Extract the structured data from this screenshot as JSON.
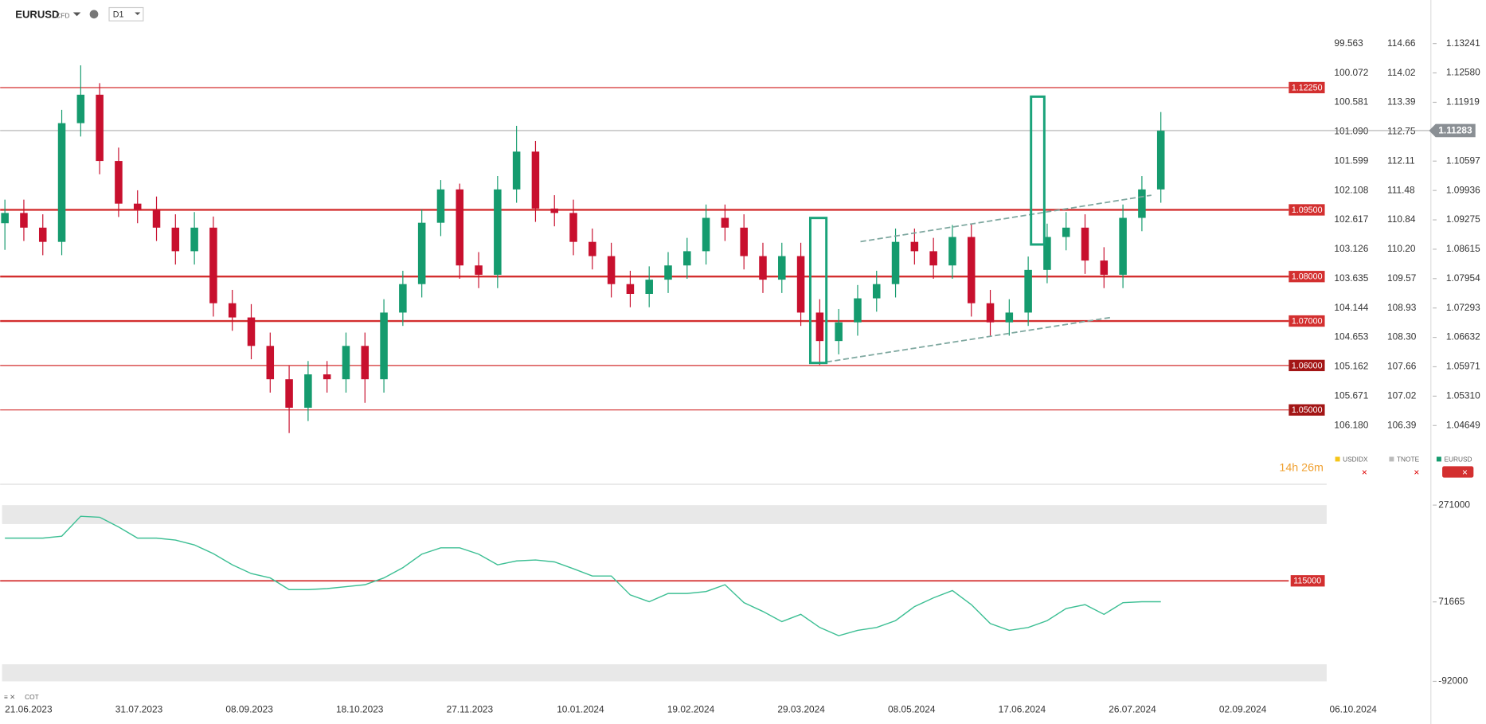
{
  "header": {
    "symbol": "EURUSD",
    "kind": "CFD",
    "interval": "D1"
  },
  "legend": [
    "USDIDX",
    "TNOTE",
    "EURUSD"
  ],
  "timer": "14h 26m",
  "axes": {
    "usdidx": [
      "99.563",
      "100.072",
      "100.581",
      "101.090",
      "101.599",
      "102.108",
      "102.617",
      "103.126",
      "103.635",
      "104.144",
      "104.653",
      "105.162",
      "105.671",
      "106.180"
    ],
    "tnote": [
      "114.66",
      "114.02",
      "113.39",
      "112.75",
      "112.11",
      "111.48",
      "110.84",
      "110.20",
      "109.57",
      "108.93",
      "108.30",
      "107.66",
      "107.02",
      "106.39"
    ]
  },
  "chart_data": [
    {
      "type": "candlestick",
      "name": "EURUSD",
      "categories": [
        null,
        null,
        null,
        null,
        null,
        null,
        null,
        null,
        null,
        null,
        null,
        null,
        null,
        null,
        null,
        null,
        null,
        null,
        null,
        null,
        null,
        null,
        null,
        null,
        null,
        null,
        null,
        null,
        null,
        null,
        null,
        null,
        null,
        null,
        null,
        null,
        null,
        null,
        null,
        null,
        null,
        null,
        null,
        null,
        null,
        null,
        null,
        null,
        null,
        null,
        null,
        null,
        null,
        null,
        null,
        null,
        null,
        null,
        null,
        null,
        null,
        null
      ],
      "open": [
        1.092,
        1.0943,
        1.091,
        1.0878,
        1.1145,
        1.1209,
        1.106,
        1.0964,
        1.095,
        1.091,
        1.0857,
        1.091,
        1.074,
        1.0708,
        1.0644,
        1.0569,
        1.0505,
        1.058,
        1.0569,
        1.0644,
        1.0569,
        1.0719,
        1.0783,
        1.0921,
        1.0996,
        1.0825,
        1.0804,
        1.0996,
        1.1081,
        1.0953,
        1.0943,
        1.0878,
        1.0846,
        1.0783,
        1.0761,
        1.0793,
        1.0825,
        1.0857,
        1.0932,
        1.091,
        1.0846,
        1.0793,
        1.0846,
        1.0719,
        1.0655,
        1.0697,
        1.0751,
        1.0783,
        1.0878,
        1.0857,
        1.0825,
        1.0889,
        1.074,
        1.0697,
        1.0719,
        1.0815,
        1.0889,
        1.091,
        1.0836,
        1.0804,
        1.0932,
        1.0996
      ],
      "high": [
        1.0973,
        1.0973,
        1.094,
        1.1175,
        1.1275,
        1.1235,
        1.109,
        1.0994,
        1.098,
        1.094,
        1.0945,
        1.0935,
        1.077,
        1.0738,
        1.0674,
        1.0599,
        1.061,
        1.061,
        1.0674,
        1.0674,
        1.0749,
        1.0813,
        1.0951,
        1.1017,
        1.1009,
        1.0855,
        1.1026,
        1.1139,
        1.1105,
        1.0983,
        1.0973,
        1.0908,
        1.0876,
        1.0813,
        1.0823,
        1.0855,
        1.0887,
        1.0962,
        1.0962,
        1.094,
        1.0876,
        1.0876,
        1.0876,
        1.0749,
        1.0727,
        1.0781,
        1.0813,
        1.0908,
        1.0908,
        1.0887,
        1.0916,
        1.0919,
        1.077,
        1.0749,
        1.0845,
        1.0919,
        1.0945,
        1.094,
        1.0866,
        1.0962,
        1.1026,
        1.117
      ],
      "low": [
        1.086,
        1.088,
        1.0848,
        1.0848,
        1.1115,
        1.103,
        1.0934,
        1.092,
        1.088,
        1.0827,
        1.0827,
        1.071,
        1.0678,
        1.0614,
        1.0539,
        1.0448,
        1.0475,
        1.0539,
        1.0539,
        1.0516,
        1.0539,
        1.0689,
        1.0753,
        1.0891,
        1.0795,
        1.0774,
        1.0774,
        1.0966,
        1.0923,
        1.0913,
        1.0848,
        1.0816,
        1.0753,
        1.0731,
        1.0731,
        1.0763,
        1.0795,
        1.0827,
        1.088,
        1.0816,
        1.0763,
        1.0763,
        1.0689,
        1.0601,
        1.0625,
        1.0667,
        1.0721,
        1.0753,
        1.0827,
        1.0795,
        1.0795,
        1.071,
        1.0667,
        1.0667,
        1.0689,
        1.0785,
        1.0859,
        1.0806,
        1.0774,
        1.0774,
        1.0902,
        1.0966
      ],
      "close": [
        1.0943,
        1.091,
        1.0878,
        1.1145,
        1.1209,
        1.106,
        1.0964,
        1.095,
        1.091,
        1.0857,
        1.091,
        1.074,
        1.0708,
        1.0644,
        1.0569,
        1.0505,
        1.058,
        1.0569,
        1.0644,
        1.0569,
        1.0719,
        1.0783,
        1.0921,
        1.0996,
        1.0825,
        1.0804,
        1.0996,
        1.1081,
        1.0953,
        1.0943,
        1.0878,
        1.0846,
        1.0783,
        1.0761,
        1.0793,
        1.0825,
        1.0857,
        1.0932,
        1.091,
        1.0846,
        1.0793,
        1.0846,
        1.0719,
        1.0655,
        1.0697,
        1.0751,
        1.0783,
        1.0878,
        1.0857,
        1.0825,
        1.0889,
        1.074,
        1.0697,
        1.0719,
        1.0815,
        1.0889,
        1.091,
        1.0836,
        1.0804,
        1.0932,
        1.0996,
        1.1128
      ],
      "up_color": "#159b6e",
      "down_color": "#c8102e",
      "ylim": [
        1.0335,
        1.1422
      ],
      "yticks": [
        1.13241,
        {
          "value": 1.1258,
          "label": "1.12580"
        },
        1.11919,
        1.10597,
        1.09936,
        1.09275,
        1.08615,
        1.07954,
        1.07293,
        1.06632,
        1.05971,
        {
          "value": 1.0531,
          "label": "1.05310"
        },
        1.04649
      ],
      "levels": [
        {
          "value": 1.1225,
          "label": "1.12250"
        },
        {
          "value": 1.095,
          "label": "1.09500"
        },
        {
          "value": 1.08,
          "label": "1.08000"
        },
        {
          "value": 1.07,
          "label": "1.07000"
        },
        {
          "value": 1.06,
          "label": "1.06000"
        },
        {
          "value": 1.05,
          "label": "1.05000"
        }
      ],
      "level_color": "#d32f2f",
      "last_price": 1.11283,
      "xtick_labels": [
        "21.06.2023",
        "31.07.2023",
        "08.09.2023",
        "18.10.2023",
        "27.11.2023",
        "10.01.2024",
        "19.02.2024",
        "29.03.2024",
        "08.05.2024",
        "17.06.2024",
        "26.07.2024",
        "02.09.2024",
        "06.10.2024"
      ]
    },
    {
      "type": "line",
      "name": "COT",
      "color": "#3dbf94",
      "values": [
        203000,
        203000,
        203000,
        207000,
        248000,
        246000,
        226000,
        203000,
        203000,
        199000,
        189000,
        171000,
        148000,
        130000,
        121000,
        97000,
        97000,
        99000,
        103000,
        107000,
        121000,
        142000,
        170000,
        183000,
        183000,
        170000,
        148000,
        156000,
        158000,
        154000,
        140000,
        125000,
        125000,
        86000,
        72000,
        89000,
        89000,
        93000,
        107000,
        70000,
        52000,
        31000,
        46000,
        19000,
        2000,
        13000,
        19000,
        33000,
        62000,
        80000,
        95000,
        66000,
        27000,
        13000,
        19000,
        33000,
        58000,
        66000,
        46000,
        70000,
        72000,
        72000
      ],
      "ylim": [
        -92000,
        271000
      ],
      "yticks": [
        271000,
        71665,
        -92000
      ],
      "levels": [
        115000
      ],
      "level_color": "#d32f2f"
    }
  ]
}
